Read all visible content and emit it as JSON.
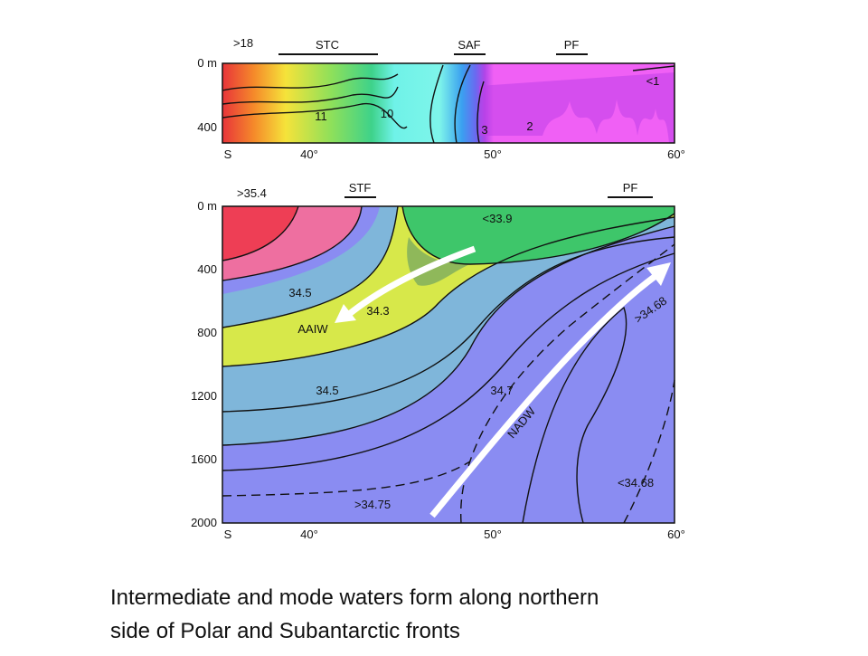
{
  "top_panel": {
    "fronts": [
      "STC",
      "SAF",
      "PF"
    ],
    "max_label": ">18",
    "depth_labels": [
      "0 m",
      "400"
    ],
    "lat_labels": [
      "S",
      "40°",
      "50°",
      "60°"
    ],
    "contour_labels": [
      "11",
      "10",
      "3",
      "2",
      "<1"
    ]
  },
  "bottom_panel": {
    "fronts": [
      "STF",
      "PF"
    ],
    "max_label": ">35.4",
    "depth_labels": [
      "0 m",
      "400",
      "800",
      "1200",
      "1600",
      "2000"
    ],
    "lat_labels": [
      "S",
      "40°",
      "50°",
      "60°"
    ],
    "contour_labels": [
      "<33.9",
      "34.5",
      "34.3",
      "34.5",
      "34.7",
      ">34.68",
      ">34.75",
      "<34.68"
    ],
    "water_masses": [
      "AAIW",
      "NADW"
    ]
  },
  "caption": [
    "Intermediate and mode waters form along northern",
    "side of Polar and Subantarctic fronts"
  ]
}
